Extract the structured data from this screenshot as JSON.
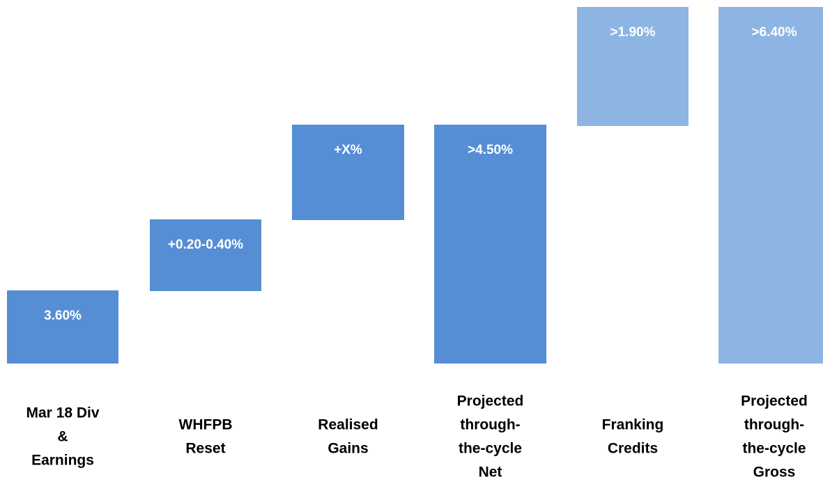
{
  "steps": [
    {
      "label": "3.60%",
      "category": [
        "Mar 18 Div",
        "&",
        "Earnings"
      ]
    },
    {
      "label": "+0.20-0.40%",
      "category": [
        "WHFPB",
        "Reset"
      ]
    },
    {
      "label": "+X%",
      "category": [
        "Realised",
        "Gains"
      ]
    },
    {
      "label": ">4.50%",
      "category": [
        "Projected",
        "through-",
        "the-cycle",
        "Net"
      ]
    },
    {
      "label": ">1.90%",
      "category": [
        "Franking",
        "Credits"
      ]
    },
    {
      "label": ">6.40%",
      "category": [
        "Projected",
        "through-",
        "the-cycle",
        "Gross"
      ]
    }
  ]
}
